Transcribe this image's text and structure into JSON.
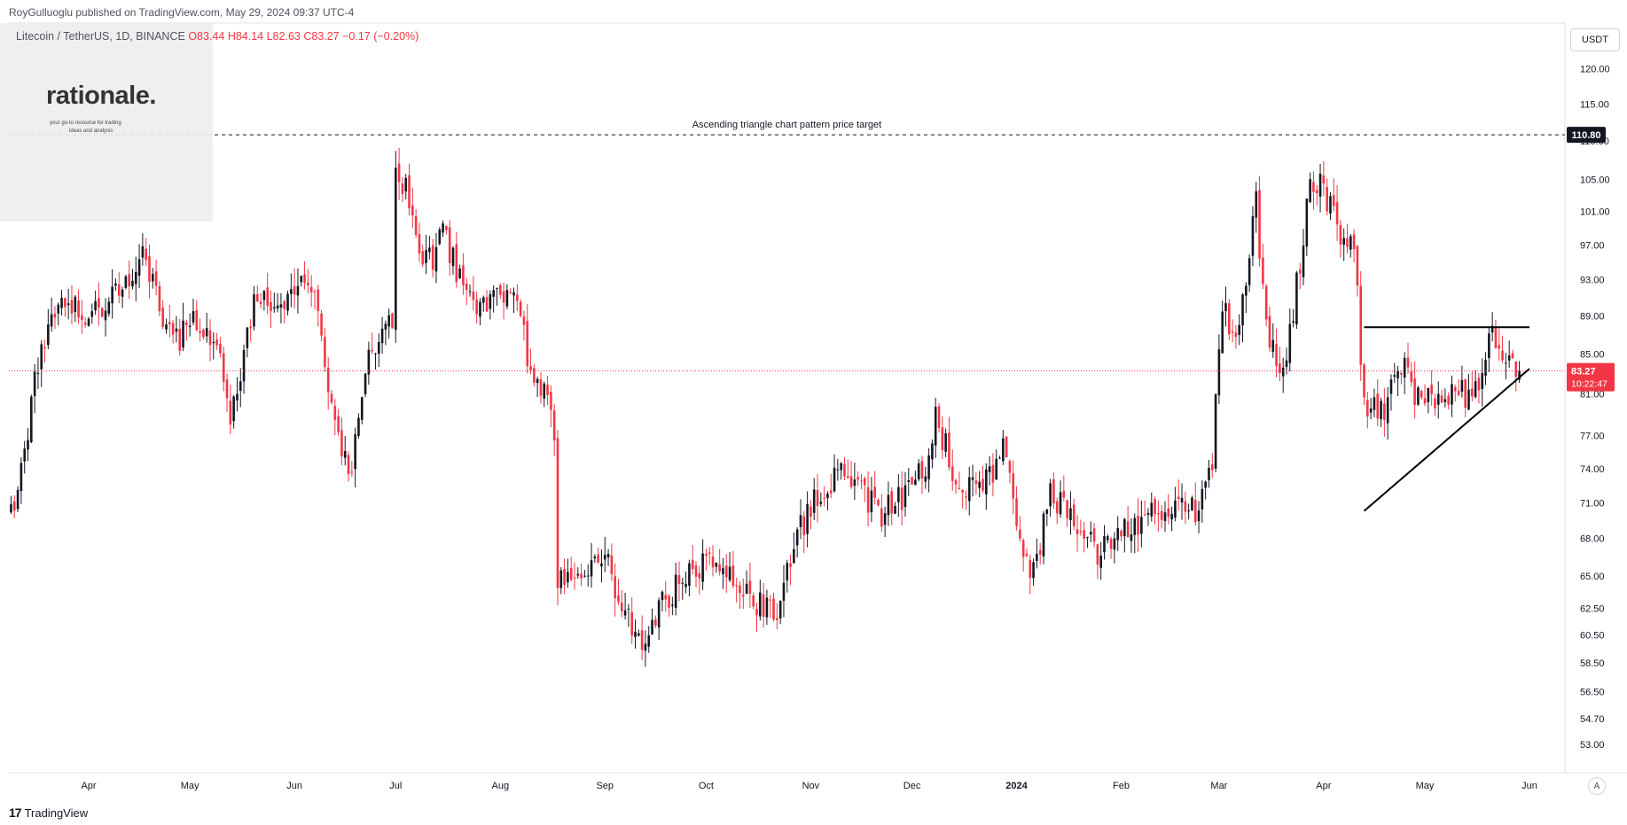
{
  "header": {
    "publisher": "RoyGulluoglu published on TradingView.com, May 29, 2024 09:37 UTC-4",
    "symbol": "Litecoin / TetherUS, 1D, BINANCE",
    "ohlc": {
      "o": "O83.44",
      "h": "H84.14",
      "l": "L82.63",
      "c": "C83.27",
      "change": "−0.17 (−0.20%)"
    }
  },
  "watermark": {
    "name": "rationale.",
    "tagline_1": "your go-to resource for trading",
    "tagline_2": "ideas and analysis"
  },
  "footer": {
    "brand": "TradingView",
    "auto_label": "A"
  },
  "colors": {
    "up": "#131722",
    "down": "#f23645",
    "price_line": "#f23645",
    "badge_dark": "#131722",
    "badge_red": "#f23645"
  },
  "chart_data": {
    "type": "candlestick",
    "symbol": "Litecoin / TetherUS",
    "timeframe": "1D",
    "exchange": "BINANCE",
    "currency": "USDT",
    "scale": "log",
    "ylim": [
      52,
      121
    ],
    "y_ticks": [
      120.0,
      115.0,
      110.0,
      105.0,
      101.0,
      97.0,
      93.0,
      89.0,
      85.0,
      81.0,
      77.0,
      74.0,
      71.0,
      68.0,
      65.0,
      62.5,
      60.5,
      58.5,
      56.5,
      54.7,
      53.0
    ],
    "y_tick_labels": [
      "120.00",
      "115.00",
      "110.00",
      "105.00",
      "101.00",
      "97.00",
      "93.00",
      "89.00",
      "85.00",
      "81.00",
      "77.00",
      "74.00",
      "71.00",
      "68.00",
      "65.00",
      "62.50",
      "60.50",
      "58.50",
      "56.50",
      "54.70",
      "53.00"
    ],
    "x_ticks": [
      {
        "date": "2023-04-01",
        "label": "Apr"
      },
      {
        "date": "2023-05-01",
        "label": "May"
      },
      {
        "date": "2023-06-01",
        "label": "Jun"
      },
      {
        "date": "2023-07-01",
        "label": "Jul"
      },
      {
        "date": "2023-08-01",
        "label": "Aug"
      },
      {
        "date": "2023-09-01",
        "label": "Sep"
      },
      {
        "date": "2023-10-01",
        "label": "Oct"
      },
      {
        "date": "2023-11-01",
        "label": "Nov"
      },
      {
        "date": "2023-12-01",
        "label": "Dec"
      },
      {
        "date": "2024-01-01",
        "label": "2024"
      },
      {
        "date": "2024-02-01",
        "label": "Feb"
      },
      {
        "date": "2024-03-01",
        "label": "Mar"
      },
      {
        "date": "2024-04-01",
        "label": "Apr"
      },
      {
        "date": "2024-05-01",
        "label": "May"
      },
      {
        "date": "2024-06-01",
        "label": "Jun"
      }
    ],
    "anchor_closes": [
      [
        "2023-03-09",
        70
      ],
      [
        "2023-03-13",
        76
      ],
      [
        "2023-03-18",
        86
      ],
      [
        "2023-03-25",
        91
      ],
      [
        "2023-03-30",
        89
      ],
      [
        "2023-04-06",
        90
      ],
      [
        "2023-04-12",
        92
      ],
      [
        "2023-04-18",
        96
      ],
      [
        "2023-04-21",
        91
      ],
      [
        "2023-04-26",
        86
      ],
      [
        "2023-05-03",
        89
      ],
      [
        "2023-05-10",
        85
      ],
      [
        "2023-05-13",
        79
      ],
      [
        "2023-05-20",
        90
      ],
      [
        "2023-05-27",
        91
      ],
      [
        "2023-06-03",
        92
      ],
      [
        "2023-06-06",
        93
      ],
      [
        "2023-06-10",
        84
      ],
      [
        "2023-06-14",
        76
      ],
      [
        "2023-06-18",
        74
      ],
      [
        "2023-06-22",
        83
      ],
      [
        "2023-06-27",
        89
      ],
      [
        "2023-06-30",
        87
      ],
      [
        "2023-07-01",
        106
      ],
      [
        "2023-07-04",
        104
      ],
      [
        "2023-07-08",
        96
      ],
      [
        "2023-07-12",
        95
      ],
      [
        "2023-07-15",
        99
      ],
      [
        "2023-07-20",
        93
      ],
      [
        "2023-07-26",
        90
      ],
      [
        "2023-08-03",
        92
      ],
      [
        "2023-08-07",
        89
      ],
      [
        "2023-08-10",
        83
      ],
      [
        "2023-08-14",
        82
      ],
      [
        "2023-08-17",
        77
      ],
      [
        "2023-08-18",
        65
      ],
      [
        "2023-08-24",
        65
      ],
      [
        "2023-08-31",
        67
      ],
      [
        "2023-09-06",
        63
      ],
      [
        "2023-09-11",
        60
      ],
      [
        "2023-09-18",
        63
      ],
      [
        "2023-09-25",
        65
      ],
      [
        "2023-10-02",
        66
      ],
      [
        "2023-10-09",
        65
      ],
      [
        "2023-10-16",
        63
      ],
      [
        "2023-10-22",
        62
      ],
      [
        "2023-10-27",
        68
      ],
      [
        "2023-11-02",
        71
      ],
      [
        "2023-11-10",
        74
      ],
      [
        "2023-11-16",
        72
      ],
      [
        "2023-11-22",
        70
      ],
      [
        "2023-11-30",
        72
      ],
      [
        "2023-12-05",
        74
      ],
      [
        "2023-12-08",
        79
      ],
      [
        "2023-12-14",
        73
      ],
      [
        "2023-12-22",
        72
      ],
      [
        "2023-12-28",
        76
      ],
      [
        "2024-01-03",
        66
      ],
      [
        "2024-01-06",
        65
      ],
      [
        "2024-01-11",
        72
      ],
      [
        "2024-01-17",
        70
      ],
      [
        "2024-01-25",
        67
      ],
      [
        "2024-02-03",
        69
      ],
      [
        "2024-02-10",
        70
      ],
      [
        "2024-02-17",
        71
      ],
      [
        "2024-02-24",
        70
      ],
      [
        "2024-02-28",
        75
      ],
      [
        "2024-03-02",
        91
      ],
      [
        "2024-03-06",
        86
      ],
      [
        "2024-03-12",
        102
      ],
      [
        "2024-03-15",
        88
      ],
      [
        "2024-03-20",
        83
      ],
      [
        "2024-03-25",
        95
      ],
      [
        "2024-03-28",
        105
      ],
      [
        "2024-04-01",
        104
      ],
      [
        "2024-04-05",
        99
      ],
      [
        "2024-04-10",
        97
      ],
      [
        "2024-04-13",
        80
      ],
      [
        "2024-04-18",
        79
      ],
      [
        "2024-04-24",
        84
      ],
      [
        "2024-04-30",
        80
      ],
      [
        "2024-05-07",
        81
      ],
      [
        "2024-05-13",
        81
      ],
      [
        "2024-05-18",
        83
      ],
      [
        "2024-05-21",
        87
      ],
      [
        "2024-05-25",
        85
      ],
      [
        "2024-05-29",
        83.27
      ]
    ],
    "last_price": 83.27,
    "last_price_label": "83.27",
    "countdown": "10:22:47",
    "target_price": 110.8,
    "target_label": "110.80",
    "annotations": [
      {
        "text": "Ascending triangle chart pattern price target",
        "type": "horizontal-dashed-line",
        "price": 110.8
      }
    ],
    "pattern": {
      "resistance": {
        "from": [
          "2024-04-13",
          87.8
        ],
        "to": [
          "2024-06-01",
          87.8
        ]
      },
      "support": {
        "from": [
          "2024-04-13",
          70.3
        ],
        "to": [
          "2024-06-01",
          83.5
        ]
      }
    }
  }
}
